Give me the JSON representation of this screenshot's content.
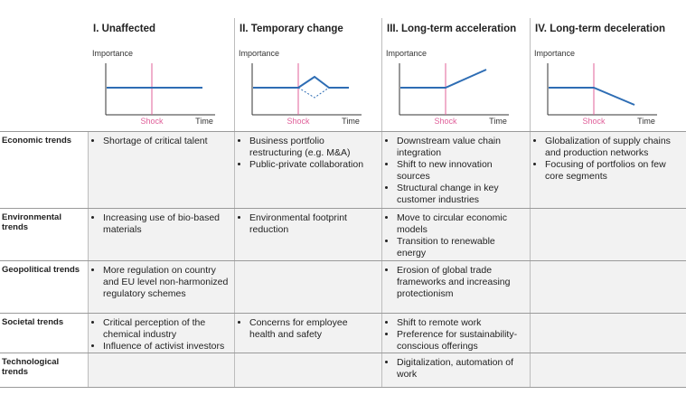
{
  "columns": [
    {
      "title": "I. Unaffected",
      "y_label": "Importance",
      "shock_label": "Shock",
      "x_label": "Time"
    },
    {
      "title": "II. Temporary change",
      "y_label": "Importance",
      "shock_label": "Shock",
      "x_label": "Time"
    },
    {
      "title": "III. Long-term acceleration",
      "y_label": "Importance",
      "shock_label": "Shock",
      "x_label": "Time"
    },
    {
      "title": "IV. Long-term deceleration",
      "y_label": "Importance",
      "shock_label": "Shock",
      "x_label": "Time"
    }
  ],
  "rows": [
    {
      "label": "Economic trends",
      "cells": [
        [
          "Shortage of critical talent"
        ],
        [
          "Business portfolio restructuring (e.g. M&A)",
          "Public-private collaboration"
        ],
        [
          "Downstream value chain integration",
          "Shift to new innovation sources",
          "Structural change in key customer industries"
        ],
        [
          "Globalization of supply chains and production networks",
          "Focusing of portfolios on few core segments"
        ]
      ]
    },
    {
      "label": "Environmental trends",
      "cells": [
        [
          "Increasing use of bio-based materials"
        ],
        [
          "Environmental footprint reduction"
        ],
        [
          "Move to circular economic models",
          "Transition to renewable energy"
        ],
        []
      ]
    },
    {
      "label": "Geopolitical trends",
      "cells": [
        [
          "More regulation on country and EU level non-harmonized regulatory schemes"
        ],
        [],
        [
          "Erosion of global trade frameworks and increasing protectionism"
        ],
        []
      ]
    },
    {
      "label": "Societal trends",
      "cells": [
        [
          "Critical perception of the chemical industry",
          "Influence of activist investors"
        ],
        [
          "Concerns for employee health and safety"
        ],
        [
          "Shift to remote work",
          "Preference for sustainability-conscious offerings"
        ],
        []
      ]
    },
    {
      "label": "Technological trends",
      "cells": [
        [],
        [],
        [
          "Digitalization, automation of work"
        ],
        []
      ]
    }
  ]
}
